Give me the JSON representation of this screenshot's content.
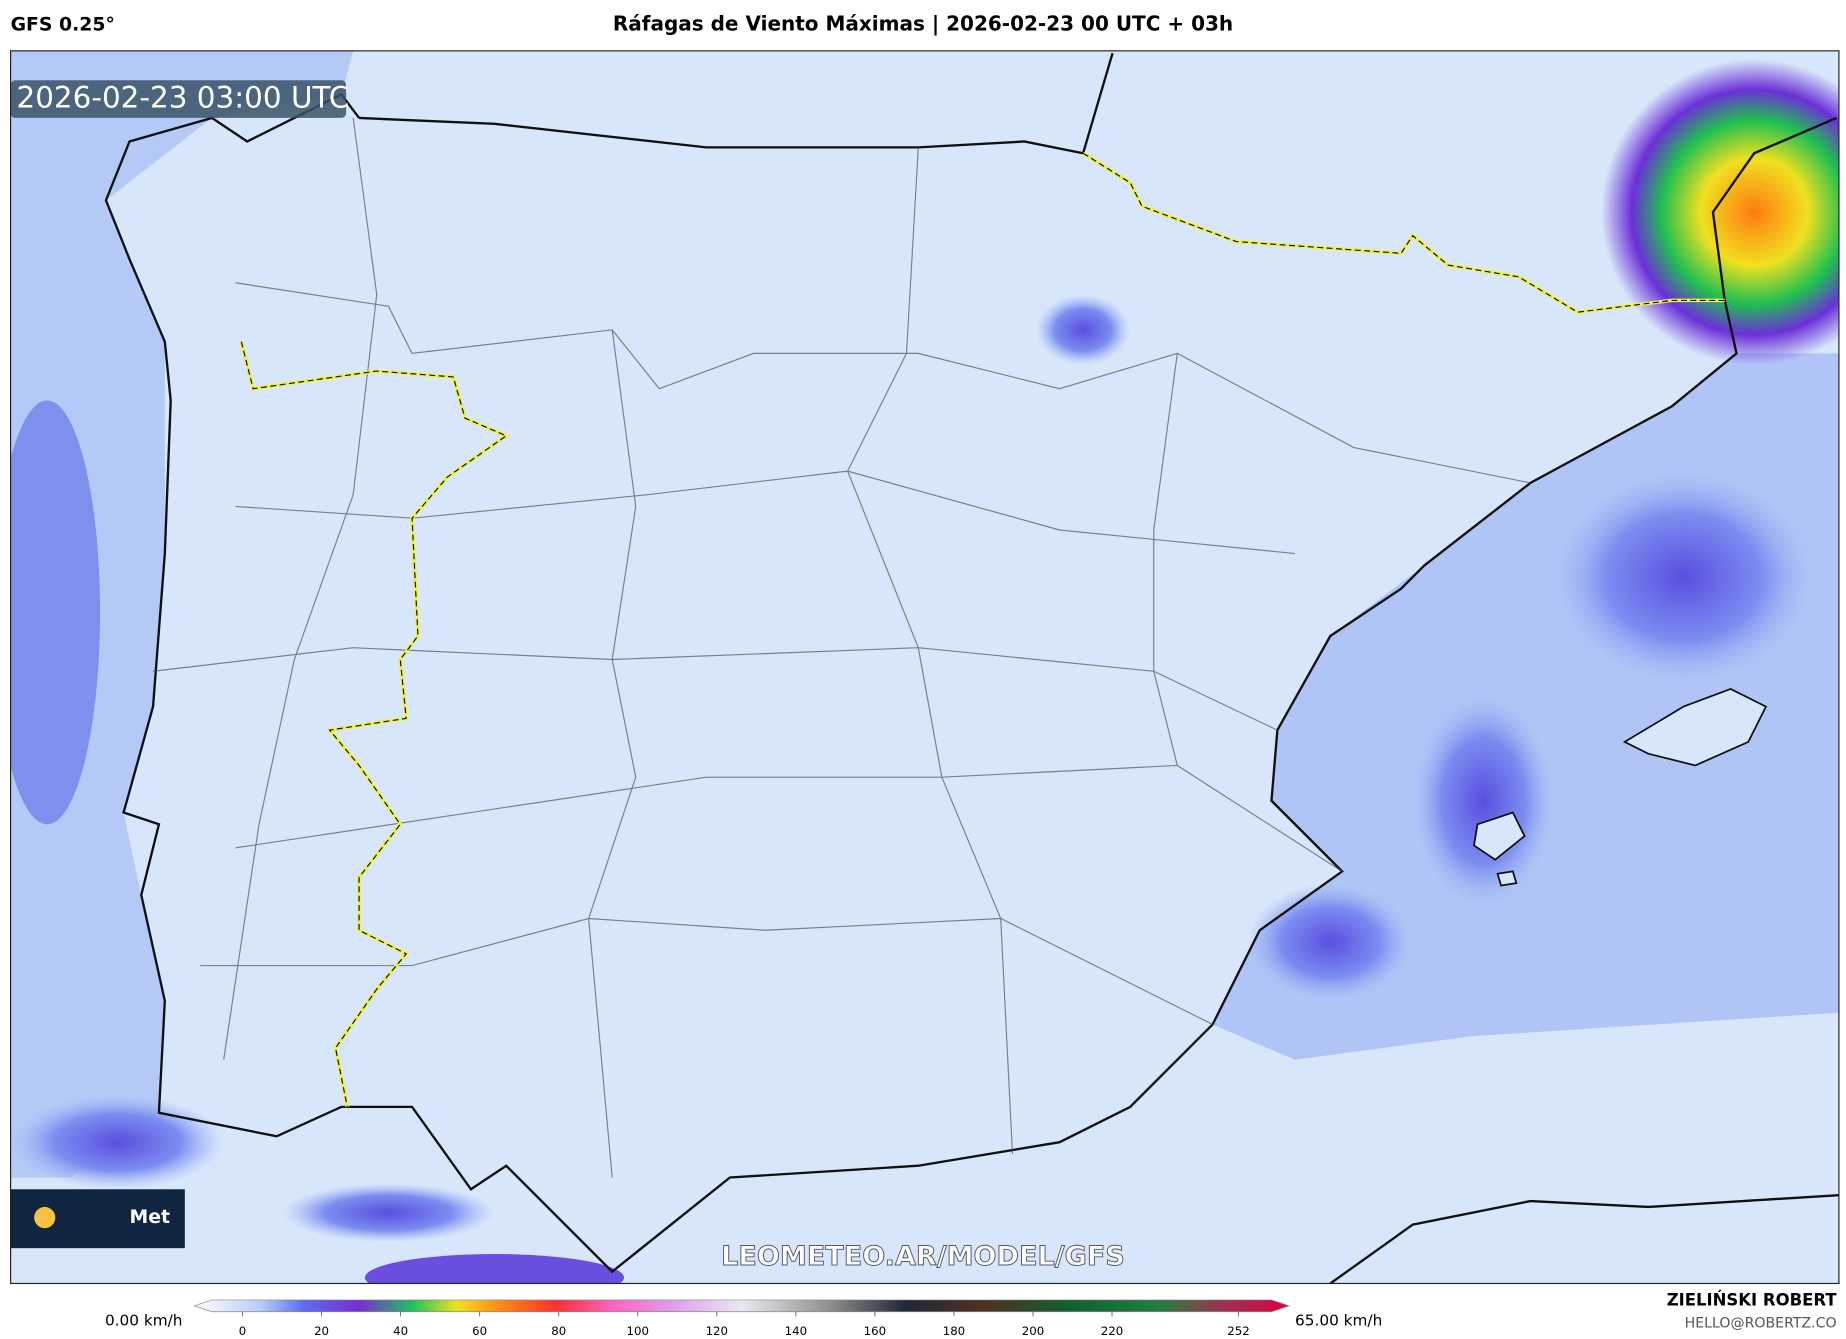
{
  "header": {
    "model": "GFS 0.25°",
    "title": "Ráfagas de Viento Máximas | 2026-02-23 00 UTC + 03h"
  },
  "map": {
    "timestamp": "2026-02-23 03:00 UTC",
    "watermark": "LEOMETEO.AR/MODEL/GFS",
    "logo": "Met"
  },
  "colorbar": {
    "min_label": "0.00 km/h",
    "max_label": "65.00 km/h",
    "ticks": [
      0,
      20,
      40,
      60,
      80,
      100,
      120,
      140,
      160,
      180,
      200,
      220,
      252
    ]
  },
  "credits": {
    "author": "ZIELIŃSKI ROBERT",
    "contact": "HELLO@ROBERTZ.CO"
  }
}
